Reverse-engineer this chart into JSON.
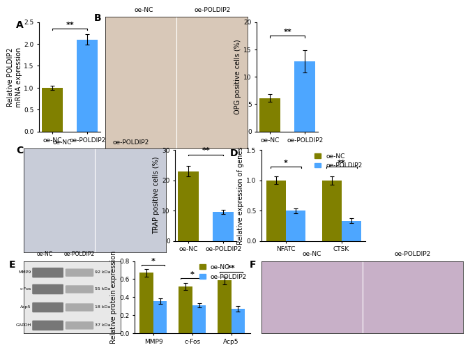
{
  "panel_A": {
    "categories": [
      "oe-NC",
      "oe-POLDIP2"
    ],
    "values": [
      1.0,
      2.1
    ],
    "errors": [
      0.05,
      0.12
    ],
    "bar_colors": [
      "#808000",
      "#4da6ff"
    ],
    "ylabel": "Relative POLDIP2\nmRNA expression",
    "ylim": [
      0,
      2.5
    ],
    "yticks": [
      0.0,
      0.5,
      1.0,
      1.5,
      2.0,
      2.5
    ],
    "sig_text": "**",
    "label": "A"
  },
  "panel_B_bar": {
    "categories": [
      "oe-NC",
      "oe-POLDIP2"
    ],
    "values": [
      6.1,
      12.8
    ],
    "errors": [
      0.7,
      2.0
    ],
    "bar_colors": [
      "#808000",
      "#4da6ff"
    ],
    "ylabel": "OPG positive cells (%)",
    "ylim": [
      0,
      20
    ],
    "yticks": [
      0,
      5,
      10,
      15,
      20
    ],
    "sig_text": "**",
    "label": "B"
  },
  "panel_C_bar": {
    "categories": [
      "oe-NC",
      "oe-POLDIP2"
    ],
    "values": [
      23.0,
      9.5
    ],
    "errors": [
      1.8,
      0.7
    ],
    "bar_colors": [
      "#808000",
      "#4da6ff"
    ],
    "ylabel": "TRAP positive cells (%)",
    "ylim": [
      0,
      30
    ],
    "yticks": [
      0,
      10,
      20,
      30
    ],
    "sig_text": "**",
    "label": "C"
  },
  "panel_D": {
    "groups": [
      "NFATC",
      "CTSK"
    ],
    "series": {
      "oe-NC": [
        1.0,
        1.0
      ],
      "oe-POLDIP2": [
        0.5,
        0.33
      ]
    },
    "errors": {
      "oe-NC": [
        0.06,
        0.07
      ],
      "oe-POLDIP2": [
        0.04,
        0.04
      ]
    },
    "bar_colors": {
      "oe-NC": "#808000",
      "oe-POLDIP2": "#4da6ff"
    },
    "ylabel": "Relative expression of genes",
    "ylim": [
      0,
      1.5
    ],
    "yticks": [
      0.0,
      0.5,
      1.0,
      1.5
    ],
    "sig_texts": [
      "*",
      "**"
    ],
    "label": "D"
  },
  "panel_E_bar": {
    "groups": [
      "MMP9",
      "c-Fos",
      "Acp5"
    ],
    "series": {
      "oe-NC": [
        0.67,
        0.52,
        0.585
      ],
      "oe-POLDIP2": [
        0.36,
        0.31,
        0.27
      ]
    },
    "errors": {
      "oe-NC": [
        0.04,
        0.04,
        0.04
      ],
      "oe-POLDIP2": [
        0.03,
        0.025,
        0.03
      ]
    },
    "bar_colors": {
      "oe-NC": "#808000",
      "oe-POLDIP2": "#4da6ff"
    },
    "ylabel": "Relative protein expression",
    "ylim": [
      0,
      0.8
    ],
    "yticks": [
      0.0,
      0.2,
      0.4,
      0.6,
      0.8
    ],
    "sig_texts": [
      "*",
      "*",
      "**"
    ],
    "label": "E"
  },
  "colors": {
    "olive": "#808000",
    "blue": "#4da6ff"
  },
  "font_sizes": {
    "panel_label": 10,
    "axis_label": 7,
    "tick_label": 6.5,
    "sig_text": 8,
    "legend": 6.5,
    "xticklabel": 6.5
  }
}
